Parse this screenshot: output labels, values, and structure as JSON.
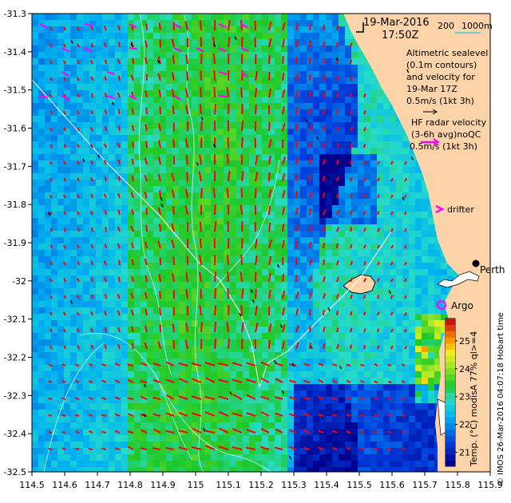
{
  "date": "19-Mar-2016",
  "time": "17:50Z",
  "scale": {
    "left": "200",
    "right": "1000m"
  },
  "altimetry_lines": [
    "Altimetric sealevel",
    "(0.1m contours)",
    "and velocity for",
    "19-Mar 17Z",
    "0.5m/s (1kt 3h)"
  ],
  "hf_lines": [
    "HF radar velocity",
    "(3-6h avg)noQC",
    "0.5m/s (1kt 3h)"
  ],
  "drifter_label": "drifter",
  "argo_label": "Argo",
  "city_label": "Perth",
  "credit_text": "© IMOS 26-Mar-2016 04:07:18 Hobart time",
  "colorbar": {
    "label": "Temp. (°C) modisA 77% ql>=4",
    "ticks": [
      "21",
      "22",
      "23",
      "24",
      "25"
    ],
    "range": [
      20.5,
      25.8
    ]
  },
  "x_ticks": [
    "114.5",
    "114.6",
    "114.7",
    "114.8",
    "114.9",
    "115",
    "115.1",
    "115.2",
    "115.3",
    "115.4",
    "115.5",
    "115.6",
    "115.7",
    "115.8",
    "115.9"
  ],
  "y_ticks": [
    "-31.3",
    "-31.4",
    "-31.5",
    "-31.6",
    "-31.7",
    "-31.8",
    "-31.9",
    "-32",
    "-32.1",
    "-32.2",
    "-32.3",
    "-32.4",
    "-32.5"
  ],
  "colors": {
    "land": "#fdd3a9",
    "altimetry_arrow": "#ff0000",
    "hf_arrow": "#ff00ff",
    "contour": "#9ef0f0",
    "track": "#ffffff",
    "argo": "#ff00ff"
  }
}
